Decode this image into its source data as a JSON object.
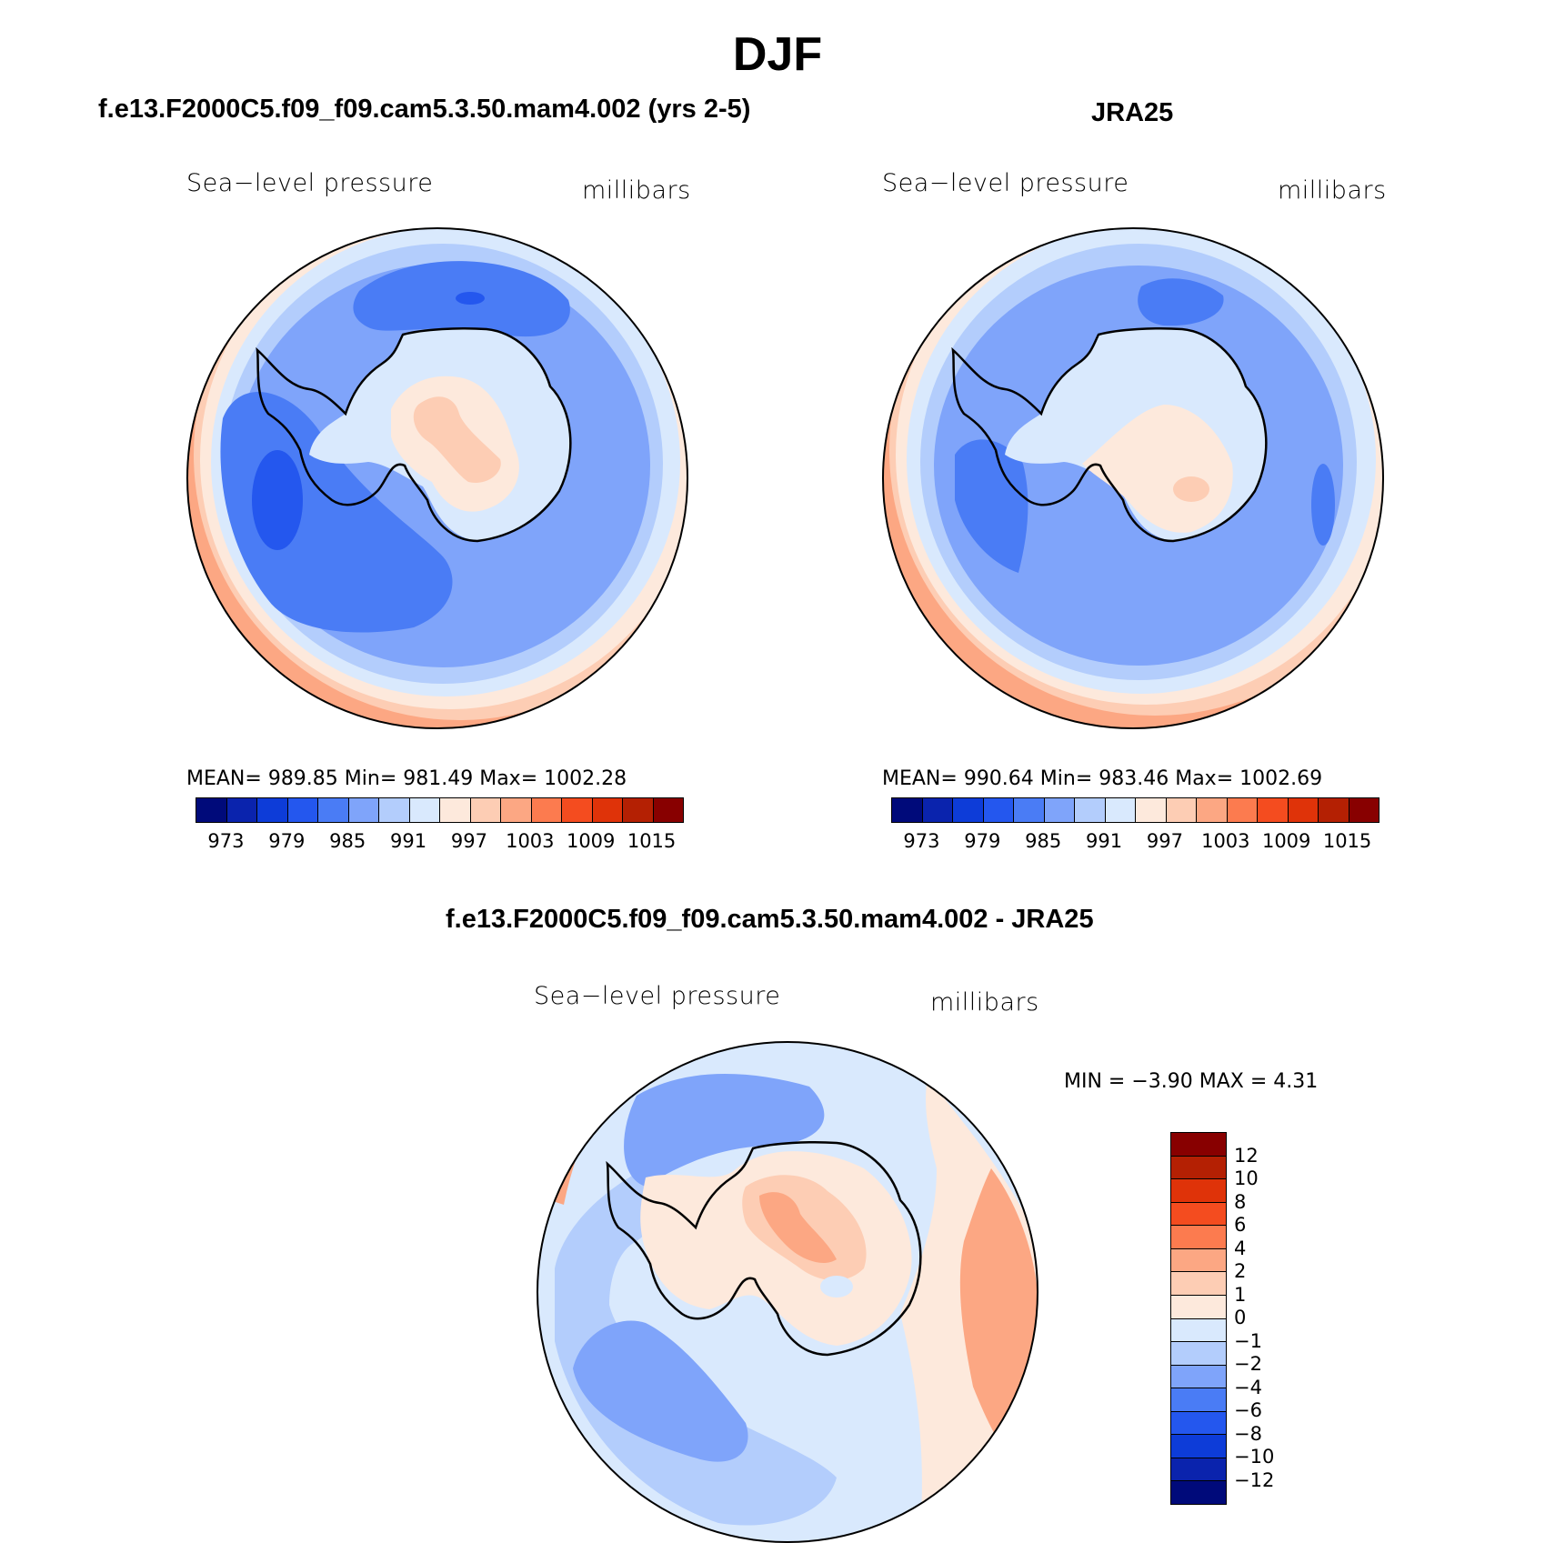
{
  "title": "DJF",
  "panels": {
    "model": {
      "title": "f.e13.F2000C5.f09_f09.cam5.3.50.mam4.002 (yrs 2-5)",
      "variable": "Sea−level pressure",
      "units": "millibars",
      "stats": "MEAN=  989.85    Min=  981.49    Max=  1002.28"
    },
    "obs": {
      "title": "JRA25",
      "variable": "Sea−level pressure",
      "units": "millibars",
      "stats": "MEAN=  990.64    Min=  983.46    Max=  1002.69"
    },
    "diff": {
      "title": "f.e13.F2000C5.f09_f09.cam5.3.50.mam4.002 - JRA25",
      "variable": "Sea−level pressure",
      "units": "millibars",
      "stats": "MIN =   −3.90  MAX =     4.31"
    }
  },
  "abs_colorbar": {
    "colors": [
      "#000a7a",
      "#0a23ad",
      "#0d3cd8",
      "#2457ee",
      "#4a7cf5",
      "#7fa4fa",
      "#b3cdfc",
      "#d9e9fd",
      "#fde9dc",
      "#fdcdb4",
      "#fca783",
      "#fc7b4f",
      "#f44c1f",
      "#df3309",
      "#b42003",
      "#880000"
    ],
    "tick_labels": [
      "973",
      "979",
      "985",
      "991",
      "997",
      "1003",
      "1009",
      "1015"
    ]
  },
  "diff_colorbar": {
    "colors": [
      "#880000",
      "#b42003",
      "#df3309",
      "#f44c1f",
      "#fc7b4f",
      "#fca783",
      "#fdcdb4",
      "#fde9dc",
      "#d9e9fd",
      "#b3cdfc",
      "#7fa4fa",
      "#4a7cf5",
      "#2457ee",
      "#0d3cd8",
      "#0a23ad",
      "#000a7a"
    ],
    "tick_labels": [
      "12",
      "10",
      "8",
      "6",
      "4",
      "2",
      "1",
      "0",
      "−1",
      "−2",
      "−4",
      "−6",
      "−8",
      "−10",
      "−12"
    ]
  }
}
